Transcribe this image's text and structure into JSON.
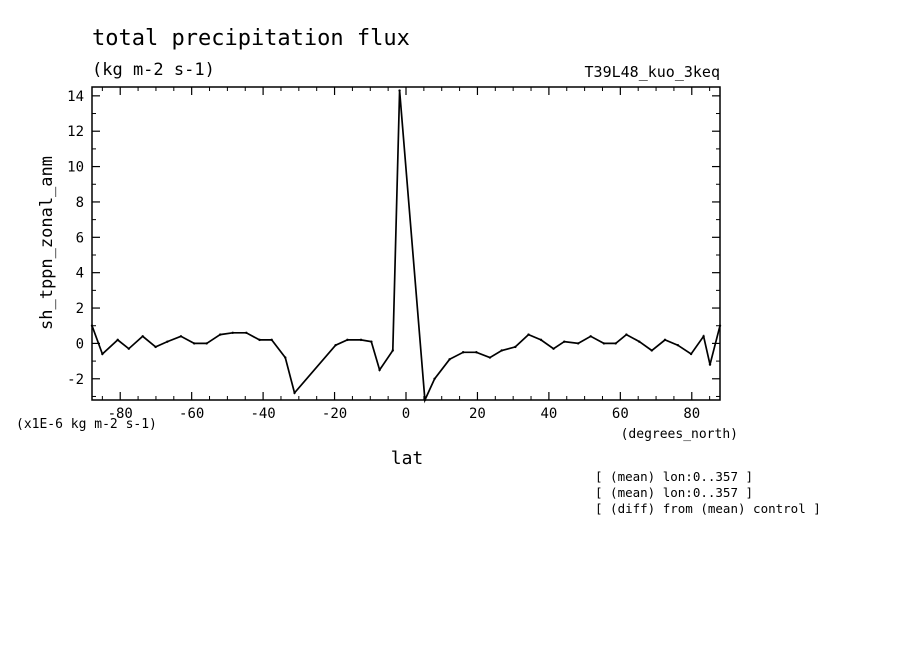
{
  "chart_data": {
    "type": "line",
    "title": "total precipitation flux",
    "subtitle": "(kg m-2 s-1)",
    "run_label": "T39L48_kuo_3keq",
    "ylabel": "sh_tppn_zonal_anm",
    "xlabel": "lat",
    "x_units": "(degrees_north)",
    "y_scale_label": "(x1E-6 kg m-2 s-1)",
    "xlim": [
      -87.9,
      87.9
    ],
    "ylim": [
      -3.2,
      14.5
    ],
    "x_ticks": [
      -80,
      -60,
      -40,
      -20,
      0,
      20,
      40,
      60,
      80
    ],
    "x_tick_labels": [
      "-80",
      "-60",
      "-40",
      "-20",
      "0",
      "20",
      "40",
      "60",
      "80"
    ],
    "y_ticks": [
      -2,
      0,
      2,
      4,
      6,
      8,
      10,
      12,
      14
    ],
    "y_tick_labels": [
      "-2",
      "0",
      "2",
      "4",
      "6",
      "8",
      "10",
      "12",
      "14"
    ],
    "x": [
      -87.9,
      -85.0,
      -80.7,
      -77.6,
      -73.7,
      -70.1,
      -66.8,
      -63.0,
      -59.3,
      -55.8,
      -52.0,
      -48.5,
      -44.7,
      -41.0,
      -37.6,
      -33.8,
      -31.2,
      -19.7,
      -16.4,
      -12.6,
      -9.7,
      -7.4,
      -3.7,
      -1.8,
      5.3,
      8.0,
      12.2,
      16.0,
      19.7,
      23.5,
      26.8,
      30.6,
      34.3,
      37.8,
      41.3,
      44.3,
      48.2,
      51.7,
      55.4,
      58.7,
      61.7,
      65.3,
      68.8,
      72.5,
      76.1,
      79.8,
      83.3,
      85.1,
      87.9
    ],
    "y": [
      1.0,
      -0.6,
      0.2,
      -0.3,
      0.4,
      -0.2,
      0.1,
      0.4,
      0.0,
      0.0,
      0.5,
      0.6,
      0.6,
      0.2,
      0.2,
      -0.8,
      -2.8,
      -0.1,
      0.2,
      0.2,
      0.1,
      -1.5,
      -0.4,
      14.3,
      -3.2,
      -2.0,
      -0.9,
      -0.5,
      -0.5,
      -0.8,
      -0.4,
      -0.2,
      0.5,
      0.2,
      -0.3,
      0.1,
      0.0,
      0.4,
      0.0,
      0.0,
      0.5,
      0.1,
      -0.4,
      0.2,
      -0.1,
      -0.6,
      0.4,
      -1.2,
      1.0
    ],
    "annotations": [
      "[ (mean) lon:0..357 ]",
      "[ (mean) lon:0..357 ]",
      "[ (diff) from (mean) control ]"
    ],
    "grid": false,
    "legend": false,
    "line_color": "#000000"
  }
}
